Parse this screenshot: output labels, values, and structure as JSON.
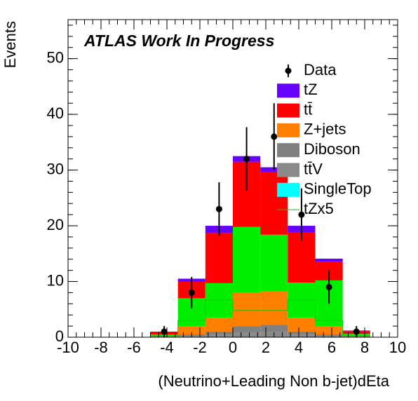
{
  "chart_data": {
    "type": "stacked_histogram",
    "title": "ATLAS Work In Progress",
    "x_label": "(Neutrino+Leading Non b-jet)dEta",
    "y_label": "Events",
    "bins": [
      -10,
      -8.333,
      -6.667,
      -5,
      -3.333,
      -1.667,
      0,
      1.667,
      3.333,
      5,
      6.667,
      8.333,
      10
    ],
    "xlim": [
      -10,
      10
    ],
    "ylim": [
      0,
      57
    ],
    "xticks": [
      -10,
      -8,
      -6,
      -4,
      -2,
      0,
      2,
      4,
      6,
      8,
      10
    ],
    "yticks": [
      0,
      10,
      20,
      30,
      40,
      50
    ],
    "legend": "upper right",
    "series": [
      {
        "name": "tZ",
        "color": "#6600ff",
        "values": [
          0,
          0,
          0,
          0.1,
          0.5,
          1.3,
          1,
          0.8,
          1.2,
          0.6,
          0.1,
          0
        ]
      },
      {
        "name": "tt̄",
        "color": "#ff0000",
        "values": [
          0,
          0,
          0,
          0.4,
          3,
          9,
          11.7,
          11.3,
          9,
          3.3,
          0.5,
          0
        ]
      },
      {
        "color": "#00ee00",
        "values": [
          0,
          0,
          0,
          0.3,
          5,
          6.2,
          11.8,
          10.2,
          6.3,
          8.2,
          0.4,
          0
        ]
      },
      {
        "name": "Z+jets",
        "color": "#ff7f00",
        "values": [
          0,
          0,
          0,
          0.1,
          1.5,
          2.5,
          6,
          6,
          2.5,
          1.5,
          0.1,
          0
        ]
      },
      {
        "name": "Diboson",
        "color": "#808080",
        "values": [
          0,
          0,
          0,
          0.05,
          0.3,
          0.6,
          1.2,
          1.3,
          0.6,
          0.3,
          0.05,
          0
        ]
      },
      {
        "name": "tt̄V",
        "color": "#8a8a8a",
        "values": [
          0,
          0,
          0,
          0.05,
          0.2,
          0.4,
          0.8,
          0.9,
          0.4,
          0.2,
          0.05,
          0
        ]
      },
      {
        "name": "SingleTop",
        "color": "#00ffff",
        "values": [
          0,
          0,
          0,
          0,
          0,
          0,
          0,
          0,
          0,
          0,
          0,
          0
        ]
      }
    ],
    "line": {
      "name": "tZx5",
      "color": "#00cc00",
      "values": [
        0,
        0,
        0,
        0.2,
        3,
        6.7,
        4.8,
        4.8,
        6.7,
        3,
        0.2,
        0
      ]
    },
    "data": {
      "name": "Data",
      "color": "#000000",
      "values": [
        null,
        null,
        null,
        1,
        8,
        23,
        32,
        36,
        22,
        9,
        1,
        null
      ],
      "errors": [
        null,
        null,
        null,
        1,
        2.8,
        4.8,
        5.7,
        6,
        4.7,
        3,
        1,
        null
      ]
    }
  }
}
